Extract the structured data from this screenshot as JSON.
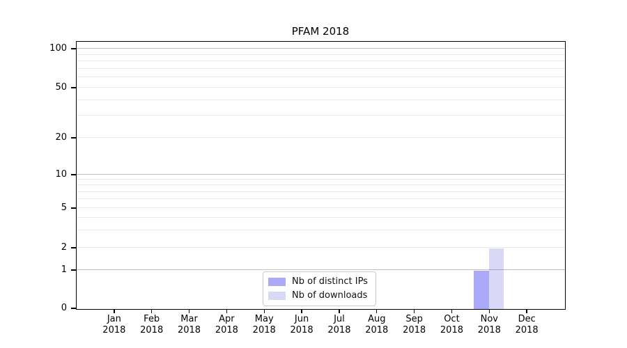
{
  "chart_data": {
    "type": "bar",
    "title": "PFAM 2018",
    "x_axis": {
      "months": [
        "Jan",
        "Feb",
        "Mar",
        "Apr",
        "May",
        "Jun",
        "Jul",
        "Aug",
        "Sep",
        "Oct",
        "Nov",
        "Dec"
      ],
      "year": "2018"
    },
    "y_axis": {
      "scale": "symlog",
      "ticks": [
        0,
        1,
        2,
        5,
        10,
        20,
        50,
        100
      ],
      "major_gridlines": [
        1,
        10,
        100
      ],
      "minor_gridlines": [
        2,
        3,
        4,
        5,
        6,
        7,
        8,
        9,
        20,
        30,
        40,
        50,
        60,
        70,
        80,
        90
      ],
      "ylim": [
        0,
        115
      ],
      "grid": "horizontal"
    },
    "series": [
      {
        "name": "Nb of distinct IPs",
        "color": "#aaaaf8",
        "values": [
          0,
          0,
          0,
          0,
          0,
          0,
          0,
          0,
          0,
          0,
          1,
          0
        ]
      },
      {
        "name": "Nb of downloads",
        "color": "#d9d9f7",
        "values": [
          0,
          0,
          0,
          0,
          0,
          0,
          0,
          0,
          0,
          0,
          2,
          0
        ]
      }
    ],
    "legend": {
      "position": "lower-center"
    }
  },
  "colors": {
    "background": "#ffffff",
    "spine": "#000000",
    "text": "#000000",
    "legend_border": "#c9c9c9"
  }
}
